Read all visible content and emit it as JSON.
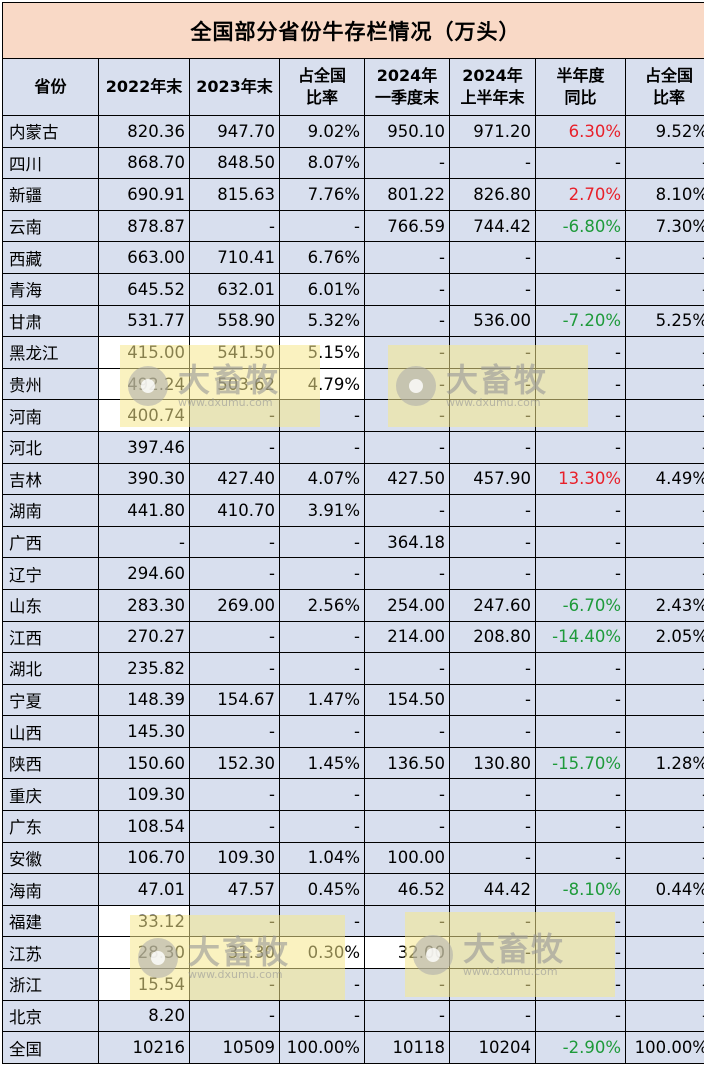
{
  "title": "全国部分省份牛存栏情况（万头）",
  "headers": [
    "省份",
    "2022年末",
    "2023年末",
    "占全国\n比率",
    "2024年\n一季度末",
    "2024年\n上半年末",
    "半年度\n同比",
    "占全国\n比率"
  ],
  "rows": [
    [
      "内蒙古",
      "820.36",
      "947.70",
      "9.02%",
      "950.10",
      "971.20",
      "6.30%",
      "9.52%"
    ],
    [
      "四川",
      "868.70",
      "848.50",
      "8.07%",
      "-",
      "-",
      "-",
      "-"
    ],
    [
      "新疆",
      "690.91",
      "815.63",
      "7.76%",
      "801.22",
      "826.80",
      "2.70%",
      "8.10%"
    ],
    [
      "云南",
      "878.87",
      "-",
      "-",
      "766.59",
      "744.42",
      "-6.80%",
      "7.30%"
    ],
    [
      "西藏",
      "663.00",
      "710.41",
      "6.76%",
      "-",
      "-",
      "-",
      "-"
    ],
    [
      "青海",
      "645.52",
      "632.01",
      "6.01%",
      "-",
      "-",
      "-",
      "-"
    ],
    [
      "甘肃",
      "531.77",
      "558.90",
      "5.32%",
      "-",
      "536.00",
      "-7.20%",
      "5.25%"
    ],
    [
      "黑龙江",
      "415.00",
      "541.50",
      "5.15%",
      "-",
      "-",
      "-",
      "-"
    ],
    [
      "贵州",
      "492.24",
      "503.62",
      "4.79%",
      "-",
      "-",
      "-",
      "-"
    ],
    [
      "河南",
      "400.74",
      "-",
      "-",
      "-",
      "-",
      "-",
      "-"
    ],
    [
      "河北",
      "397.46",
      "-",
      "-",
      "-",
      "-",
      "-",
      "-"
    ],
    [
      "吉林",
      "390.30",
      "427.40",
      "4.07%",
      "427.50",
      "457.90",
      "13.30%",
      "4.49%"
    ],
    [
      "湖南",
      "441.80",
      "410.70",
      "3.91%",
      "-",
      "-",
      "-",
      "-"
    ],
    [
      "广西",
      "-",
      "-",
      "-",
      "364.18",
      "-",
      "-",
      "-"
    ],
    [
      "辽宁",
      "294.60",
      "-",
      "-",
      "-",
      "-",
      "-",
      "-"
    ],
    [
      "山东",
      "283.30",
      "269.00",
      "2.56%",
      "254.00",
      "247.60",
      "-6.70%",
      "2.43%"
    ],
    [
      "江西",
      "270.27",
      "-",
      "-",
      "214.00",
      "208.80",
      "-14.40%",
      "2.05%"
    ],
    [
      "湖北",
      "235.82",
      "-",
      "-",
      "-",
      "-",
      "-",
      "-"
    ],
    [
      "宁夏",
      "148.39",
      "154.67",
      "1.47%",
      "154.50",
      "-",
      "-",
      "-"
    ],
    [
      "山西",
      "145.30",
      "-",
      "-",
      "-",
      "-",
      "-",
      "-"
    ],
    [
      "陕西",
      "150.60",
      "152.30",
      "1.45%",
      "136.50",
      "130.80",
      "-15.70%",
      "1.28%"
    ],
    [
      "重庆",
      "109.30",
      "-",
      "-",
      "-",
      "-",
      "-",
      "-"
    ],
    [
      "广东",
      "108.54",
      "-",
      "-",
      "-",
      "-",
      "-",
      "-"
    ],
    [
      "安徽",
      "106.70",
      "109.30",
      "1.04%",
      "100.00",
      "-",
      "-",
      "-"
    ],
    [
      "海南",
      "47.01",
      "47.57",
      "0.45%",
      "46.52",
      "44.42",
      "-8.10%",
      "0.44%"
    ],
    [
      "福建",
      "33.12",
      "-",
      "-",
      "-",
      "-",
      "-",
      "-"
    ],
    [
      "江苏",
      "28.30",
      "31.30",
      "0.30%",
      "32.00",
      "-",
      "-",
      "-"
    ],
    [
      "浙江",
      "15.54",
      "-",
      "-",
      "-",
      "-",
      "-",
      "-"
    ],
    [
      "北京",
      "8.20",
      "-",
      "-",
      "-",
      "-",
      "-",
      "-"
    ],
    [
      "全国",
      "10216",
      "10509",
      "100.00%",
      "10118",
      "10204",
      "-2.90%",
      "100.00%"
    ]
  ],
  "watermark": {
    "name": "大畜牧",
    "url": "www.dxumu.com",
    "icon": "dxumu-logo-icon"
  },
  "colors": {
    "title_bg": "#f9d9c6",
    "cell_bg": "#d8dfee",
    "positive": "#e8202a",
    "negative": "#1e9a3a"
  }
}
